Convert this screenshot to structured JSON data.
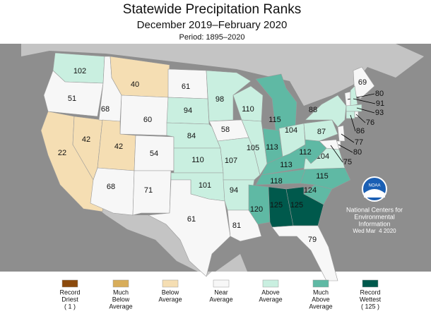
{
  "header": {
    "title": "Statewide Precipitation Ranks",
    "subtitle": "December 2019–February 2020",
    "period": "Period: 1895–2020"
  },
  "states": [
    {
      "rank": 102,
      "color": "#c9efe0"
    },
    {
      "rank": 51,
      "color": "#f7f7f7"
    },
    {
      "rank": 22,
      "color": "#f5deb3"
    },
    {
      "rank": 42,
      "color": "#f5deb3"
    },
    {
      "rank": 68,
      "color": "#f7f7f7"
    },
    {
      "rank": 40,
      "color": "#f5deb3"
    },
    {
      "rank": 60,
      "color": "#f7f7f7"
    },
    {
      "rank": 42,
      "color": "#f5deb3"
    },
    {
      "rank": 68,
      "color": "#f7f7f7"
    },
    {
      "rank": 54,
      "color": "#f7f7f7"
    },
    {
      "rank": 71,
      "color": "#f7f7f7"
    },
    {
      "rank": 61,
      "color": "#f7f7f7"
    },
    {
      "rank": 94,
      "color": "#c9efe0"
    },
    {
      "rank": 84,
      "color": "#c9efe0"
    },
    {
      "rank": 110,
      "color": "#c9efe0"
    },
    {
      "rank": 101,
      "color": "#c9efe0"
    },
    {
      "rank": 61,
      "color": "#f7f7f7"
    },
    {
      "rank": 98,
      "color": "#c9efe0"
    },
    {
      "rank": 58,
      "color": "#f7f7f7"
    },
    {
      "rank": 107,
      "color": "#c9efe0"
    },
    {
      "rank": 94,
      "color": "#c9efe0"
    },
    {
      "rank": 81,
      "color": "#f7f7f7"
    },
    {
      "rank": 110,
      "color": "#c9efe0"
    },
    {
      "rank": 105,
      "color": "#c9efe0"
    },
    {
      "rank": 115,
      "color": "#5fb9a4"
    },
    {
      "rank": 113,
      "color": "#5fb9a4"
    },
    {
      "rank": 104,
      "color": "#c9efe0"
    },
    {
      "rank": 113,
      "color": "#5fb9a4"
    },
    {
      "rank": 118,
      "color": "#5fb9a4"
    },
    {
      "rank": 120,
      "color": "#5fb9a4"
    },
    {
      "rank": 125,
      "color": "#00594c"
    },
    {
      "rank": 125,
      "color": "#00594c"
    },
    {
      "rank": 79,
      "color": "#f7f7f7"
    },
    {
      "rank": 124,
      "color": "#5fb9a4"
    },
    {
      "rank": 115,
      "color": "#5fb9a4"
    },
    {
      "rank": 104,
      "color": "#c9efe0"
    },
    {
      "rank": 112,
      "color": "#5fb9a4"
    },
    {
      "rank": 87,
      "color": "#c9efe0"
    },
    {
      "rank": 88,
      "color": "#c9efe0"
    },
    {
      "rank": 69,
      "color": "#f7f7f7"
    },
    {
      "rank": 80,
      "color": "#f7f7f7"
    },
    {
      "rank": 91,
      "color": "#c9efe0"
    },
    {
      "rank": 93,
      "color": "#c9efe0"
    },
    {
      "rank": 86,
      "color": "#c9efe0"
    },
    {
      "rank": 76,
      "color": "#f7f7f7"
    },
    {
      "rank": 77,
      "color": "#f7f7f7"
    },
    {
      "rank": 80,
      "color": "#f7f7f7"
    },
    {
      "rank": 75,
      "color": "#f7f7f7"
    }
  ],
  "legend": [
    {
      "label": [
        "Record",
        "Driest",
        "( 1 )"
      ],
      "color": "#8b4a0c"
    },
    {
      "label": [
        "Much",
        "Below",
        "Average"
      ],
      "color": "#d8ad5a"
    },
    {
      "label": [
        "Below",
        "Average"
      ],
      "color": "#f5deb3"
    },
    {
      "label": [
        "Near",
        "Average"
      ],
      "color": "#f7f7f7"
    },
    {
      "label": [
        "Above",
        "Average"
      ],
      "color": "#c9efe0"
    },
    {
      "label": [
        "Much",
        "Above",
        "Average"
      ],
      "color": "#5fb9a4"
    },
    {
      "label": [
        "Record",
        "Wettest",
        "( 125 )"
      ],
      "color": "#00594c"
    }
  ],
  "logo": "NOAA",
  "credit": [
    "National Centers for",
    "Environmental",
    "Information",
    "Wed Mar  4 2020"
  ]
}
